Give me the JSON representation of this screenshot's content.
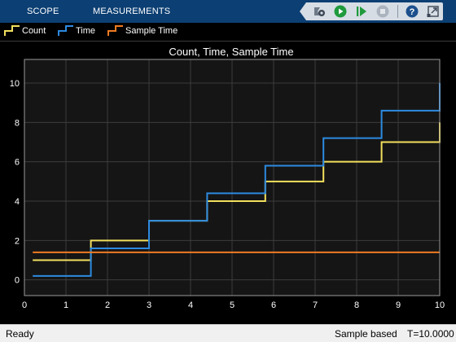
{
  "toolstrip": {
    "tabs": [
      {
        "label": "SCOPE"
      },
      {
        "label": "MEASUREMENTS"
      }
    ],
    "tools": [
      "configuration-icon",
      "run-icon",
      "step-forward-icon",
      "stop-icon",
      "help-icon",
      "undock-icon"
    ]
  },
  "legend": {
    "items": [
      {
        "label": "Count",
        "color": "#f2e05e"
      },
      {
        "label": "Time",
        "color": "#2d8ae0"
      },
      {
        "label": "Sample Time",
        "color": "#ef7b22"
      }
    ]
  },
  "colors": {
    "toolstrip": "#0c3f73",
    "plot_background": "#151515",
    "grid": "#3c3c3c"
  },
  "chart_data": {
    "type": "line",
    "title": "Count, Time, Sample Time",
    "xlabel": "",
    "ylabel": "",
    "xlim": [
      0,
      10
    ],
    "ylim": [
      -0.8,
      11.2
    ],
    "xticks": [
      0,
      1,
      2,
      3,
      4,
      5,
      6,
      7,
      8,
      9,
      10
    ],
    "yticks": [
      0,
      2,
      4,
      6,
      8,
      10
    ],
    "grid": true,
    "line_style": "step",
    "series": [
      {
        "name": "Count",
        "color": "#f2e05e",
        "x": [
          0.2,
          1.6,
          3.0,
          4.4,
          5.8,
          7.2,
          8.6,
          10.0
        ],
        "y": [
          1,
          2,
          3,
          4,
          5,
          6,
          7,
          8
        ]
      },
      {
        "name": "Time",
        "color": "#2d8ae0",
        "x": [
          0.2,
          1.6,
          3.0,
          4.4,
          5.8,
          7.2,
          8.6,
          10.0
        ],
        "y": [
          0.2,
          1.6,
          3.0,
          4.4,
          5.8,
          7.2,
          8.6,
          10.0
        ]
      },
      {
        "name": "Sample Time",
        "color": "#ef7b22",
        "x": [
          0.2,
          10.0
        ],
        "y": [
          1.4,
          1.4
        ]
      }
    ]
  },
  "status": {
    "ready": "Ready",
    "mode": "Sample based",
    "time": "T=10.0000"
  }
}
